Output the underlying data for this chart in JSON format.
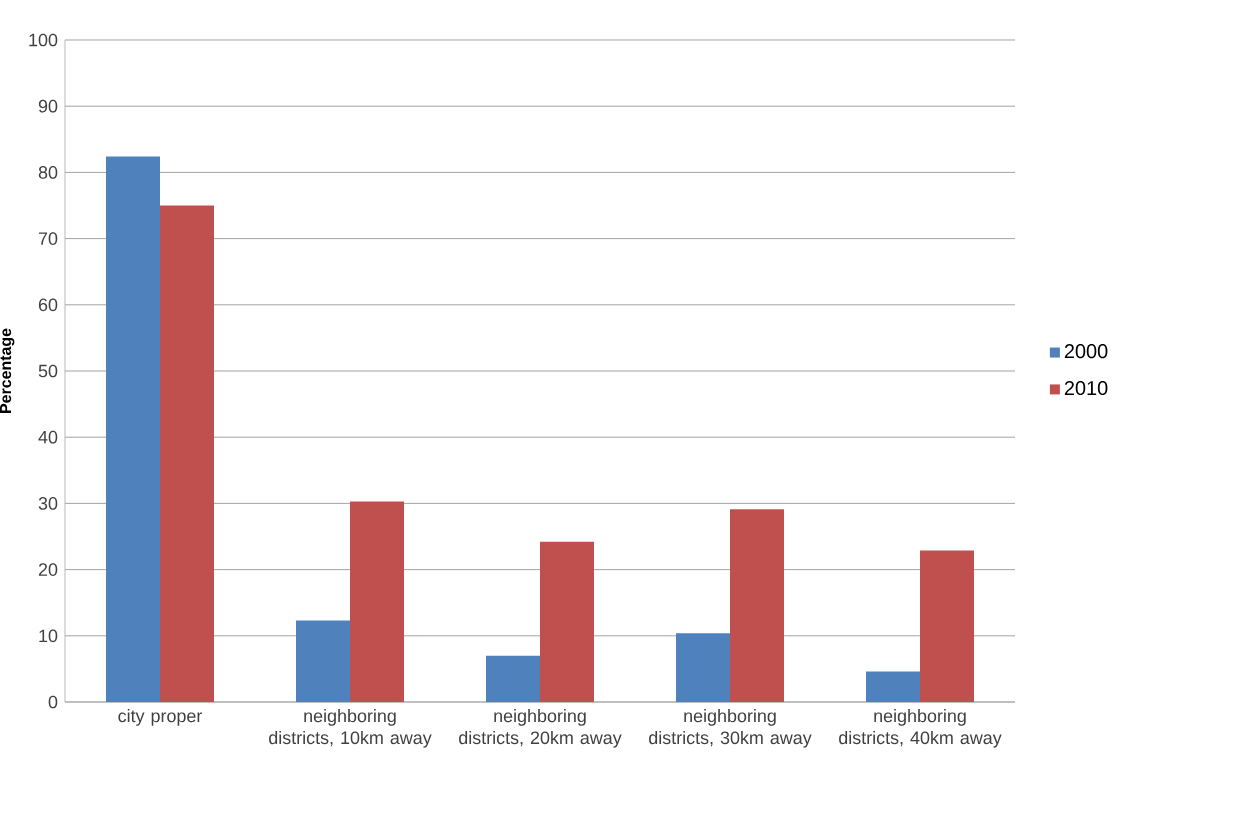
{
  "chart_data": {
    "type": "bar",
    "ylabel": "Percentage",
    "categories": [
      "city proper",
      "neighboring districts, 10km away",
      "neighboring districts, 20km away",
      "neighboring districts, 30km away",
      "neighboring districts, 40km away"
    ],
    "series": [
      {
        "name": "2000",
        "color": "#4f81bd",
        "values": [
          82.4,
          12.3,
          7.0,
          10.4,
          4.6
        ]
      },
      {
        "name": "2010",
        "color": "#c0504d",
        "values": [
          75.0,
          30.3,
          24.2,
          29.1,
          22.9
        ]
      }
    ],
    "ylim": [
      0,
      100
    ],
    "yticks": [
      0,
      10,
      20,
      30,
      40,
      50,
      60,
      70,
      80,
      90,
      100
    ],
    "grid": "y",
    "legend": "right"
  }
}
